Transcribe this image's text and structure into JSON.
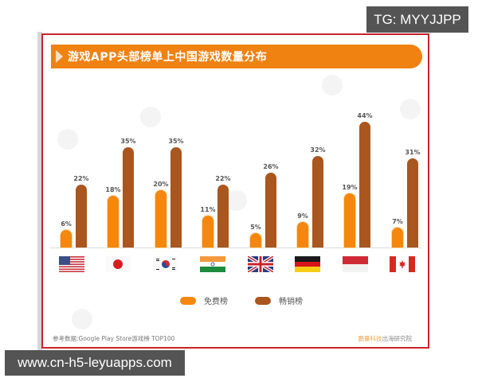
{
  "watermarks": {
    "top_right": "TG: MYYJJPP",
    "bottom_left": "www.cn-h5-leyuapps.com"
  },
  "colors": {
    "frame_border": "#c8232c",
    "banner": "#f08212",
    "free": "#f5870f",
    "paid": "#a9561f"
  },
  "chart_data": {
    "type": "bar",
    "title": "游戏APP头部榜单上中国游戏数量分布",
    "categories": [
      "美国",
      "日本",
      "韩国",
      "印度",
      "英国",
      "德国",
      "印度尼西亚",
      "加拿大"
    ],
    "category_flags": [
      "us-flag",
      "japan-flag",
      "korea-flag",
      "india-flag",
      "uk-flag",
      "germany-flag",
      "indonesia-flag",
      "canada-flag"
    ],
    "series": [
      {
        "name": "免费榜",
        "values": [
          6,
          18,
          20,
          11,
          5,
          9,
          19,
          7
        ],
        "labels": [
          "6%",
          "18%",
          "20%",
          "11%",
          "5%",
          "9%",
          "19%",
          "7%"
        ]
      },
      {
        "name": "畅销榜",
        "values": [
          22,
          35,
          35,
          22,
          26,
          32,
          44,
          31
        ],
        "labels": [
          "22%",
          "35%",
          "35%",
          "22%",
          "26%",
          "32%",
          "44%",
          "31%"
        ]
      }
    ],
    "xlabel": "",
    "ylabel": "",
    "ylim": [
      0,
      50
    ],
    "grid": false,
    "legend_position": "bottom",
    "source": "参考数据:Google Play Store游戏榜 TOP100",
    "credit_brand": "鹏量科技",
    "credit_rest": "出海研究院"
  }
}
